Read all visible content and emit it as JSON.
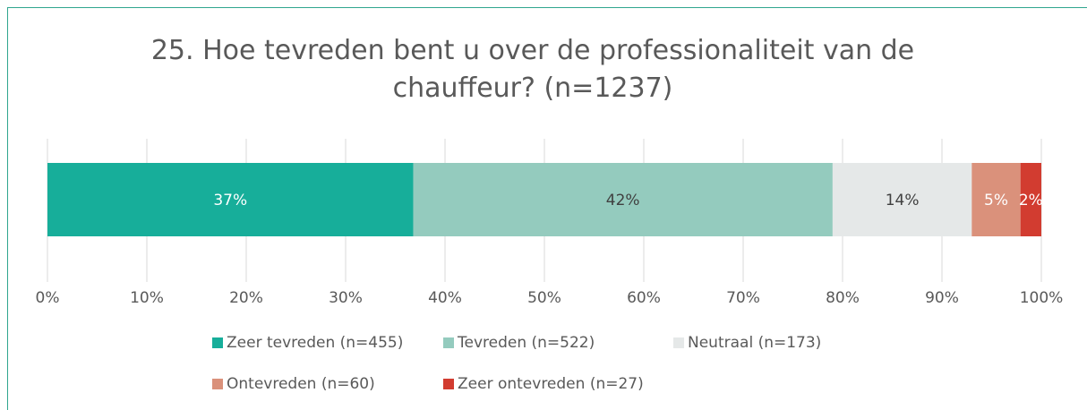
{
  "chart_data": {
    "type": "stacked_barh",
    "title": "25. Hoe tevreden bent u over de professionaliteit van de chauffeur? (n=1237)",
    "series": [
      {
        "name": "Zeer tevreden (n=455)",
        "color": "#17ae9a",
        "values": [
          36.8
        ],
        "value_labels": [
          "37%"
        ]
      },
      {
        "name": "Tevreden (n=522)",
        "color": "#94cbbe",
        "values": [
          42.2
        ],
        "value_labels": [
          "42%"
        ]
      },
      {
        "name": "Neutraal (n=173)",
        "color": "#e5e8e8",
        "values": [
          14.0
        ],
        "value_labels": [
          "14%"
        ]
      },
      {
        "name": "Ontevreden (n=60)",
        "color": "#da917b",
        "values": [
          4.9
        ],
        "value_labels": [
          "5%"
        ]
      },
      {
        "name": "Zeer ontevreden (n=27)",
        "color": "#d23c30",
        "values": [
          2.1
        ],
        "value_labels": [
          "2%"
        ]
      }
    ],
    "xlim": [
      0,
      100
    ],
    "xticks": [
      {
        "value": 0,
        "label": "0%"
      },
      {
        "value": 10,
        "label": "10%"
      },
      {
        "value": 20,
        "label": "20%"
      },
      {
        "value": 30,
        "label": "30%"
      },
      {
        "value": 40,
        "label": "40%"
      },
      {
        "value": 50,
        "label": "50%"
      },
      {
        "value": 60,
        "label": "60%"
      },
      {
        "value": 70,
        "label": "70%"
      },
      {
        "value": 80,
        "label": "80%"
      },
      {
        "value": 90,
        "label": "90%"
      },
      {
        "value": 100,
        "label": "100%"
      }
    ],
    "grid": true,
    "legend": "bottom"
  }
}
